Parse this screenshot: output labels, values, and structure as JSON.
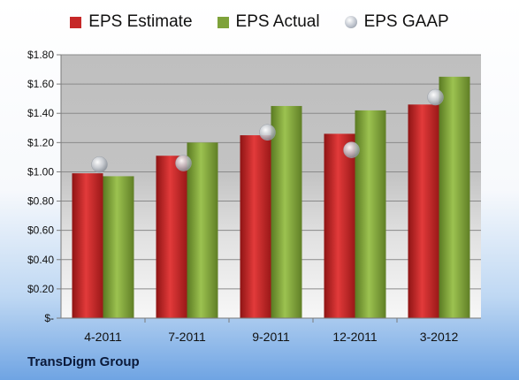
{
  "company": "TransDigm Group",
  "colors": {
    "estimate": "#c62828",
    "actual": "#7ea23a",
    "gaap": "#b8bec8"
  },
  "chart_data": {
    "type": "bar",
    "categories": [
      "4-2011",
      "7-2011",
      "9-2011",
      "12-2011",
      "3-2012"
    ],
    "series": [
      {
        "name": "EPS Estimate",
        "values": [
          0.99,
          1.11,
          1.25,
          1.26,
          1.46
        ]
      },
      {
        "name": "EPS Actual",
        "values": [
          0.97,
          1.2,
          1.45,
          1.42,
          1.65
        ]
      },
      {
        "name": "EPS GAAP",
        "type": "scatter",
        "values": [
          1.05,
          1.06,
          1.27,
          1.15,
          1.51
        ]
      }
    ],
    "ylim": [
      0,
      1.8
    ],
    "yticks": [
      0,
      0.2,
      0.4,
      0.6,
      0.8,
      1.0,
      1.2,
      1.4,
      1.6,
      1.8
    ],
    "ytick_labels": [
      "$-",
      "$0.20",
      "$0.40",
      "$0.60",
      "$0.80",
      "$1.00",
      "$1.20",
      "$1.40",
      "$1.60",
      "$1.80"
    ],
    "legend": "top"
  }
}
